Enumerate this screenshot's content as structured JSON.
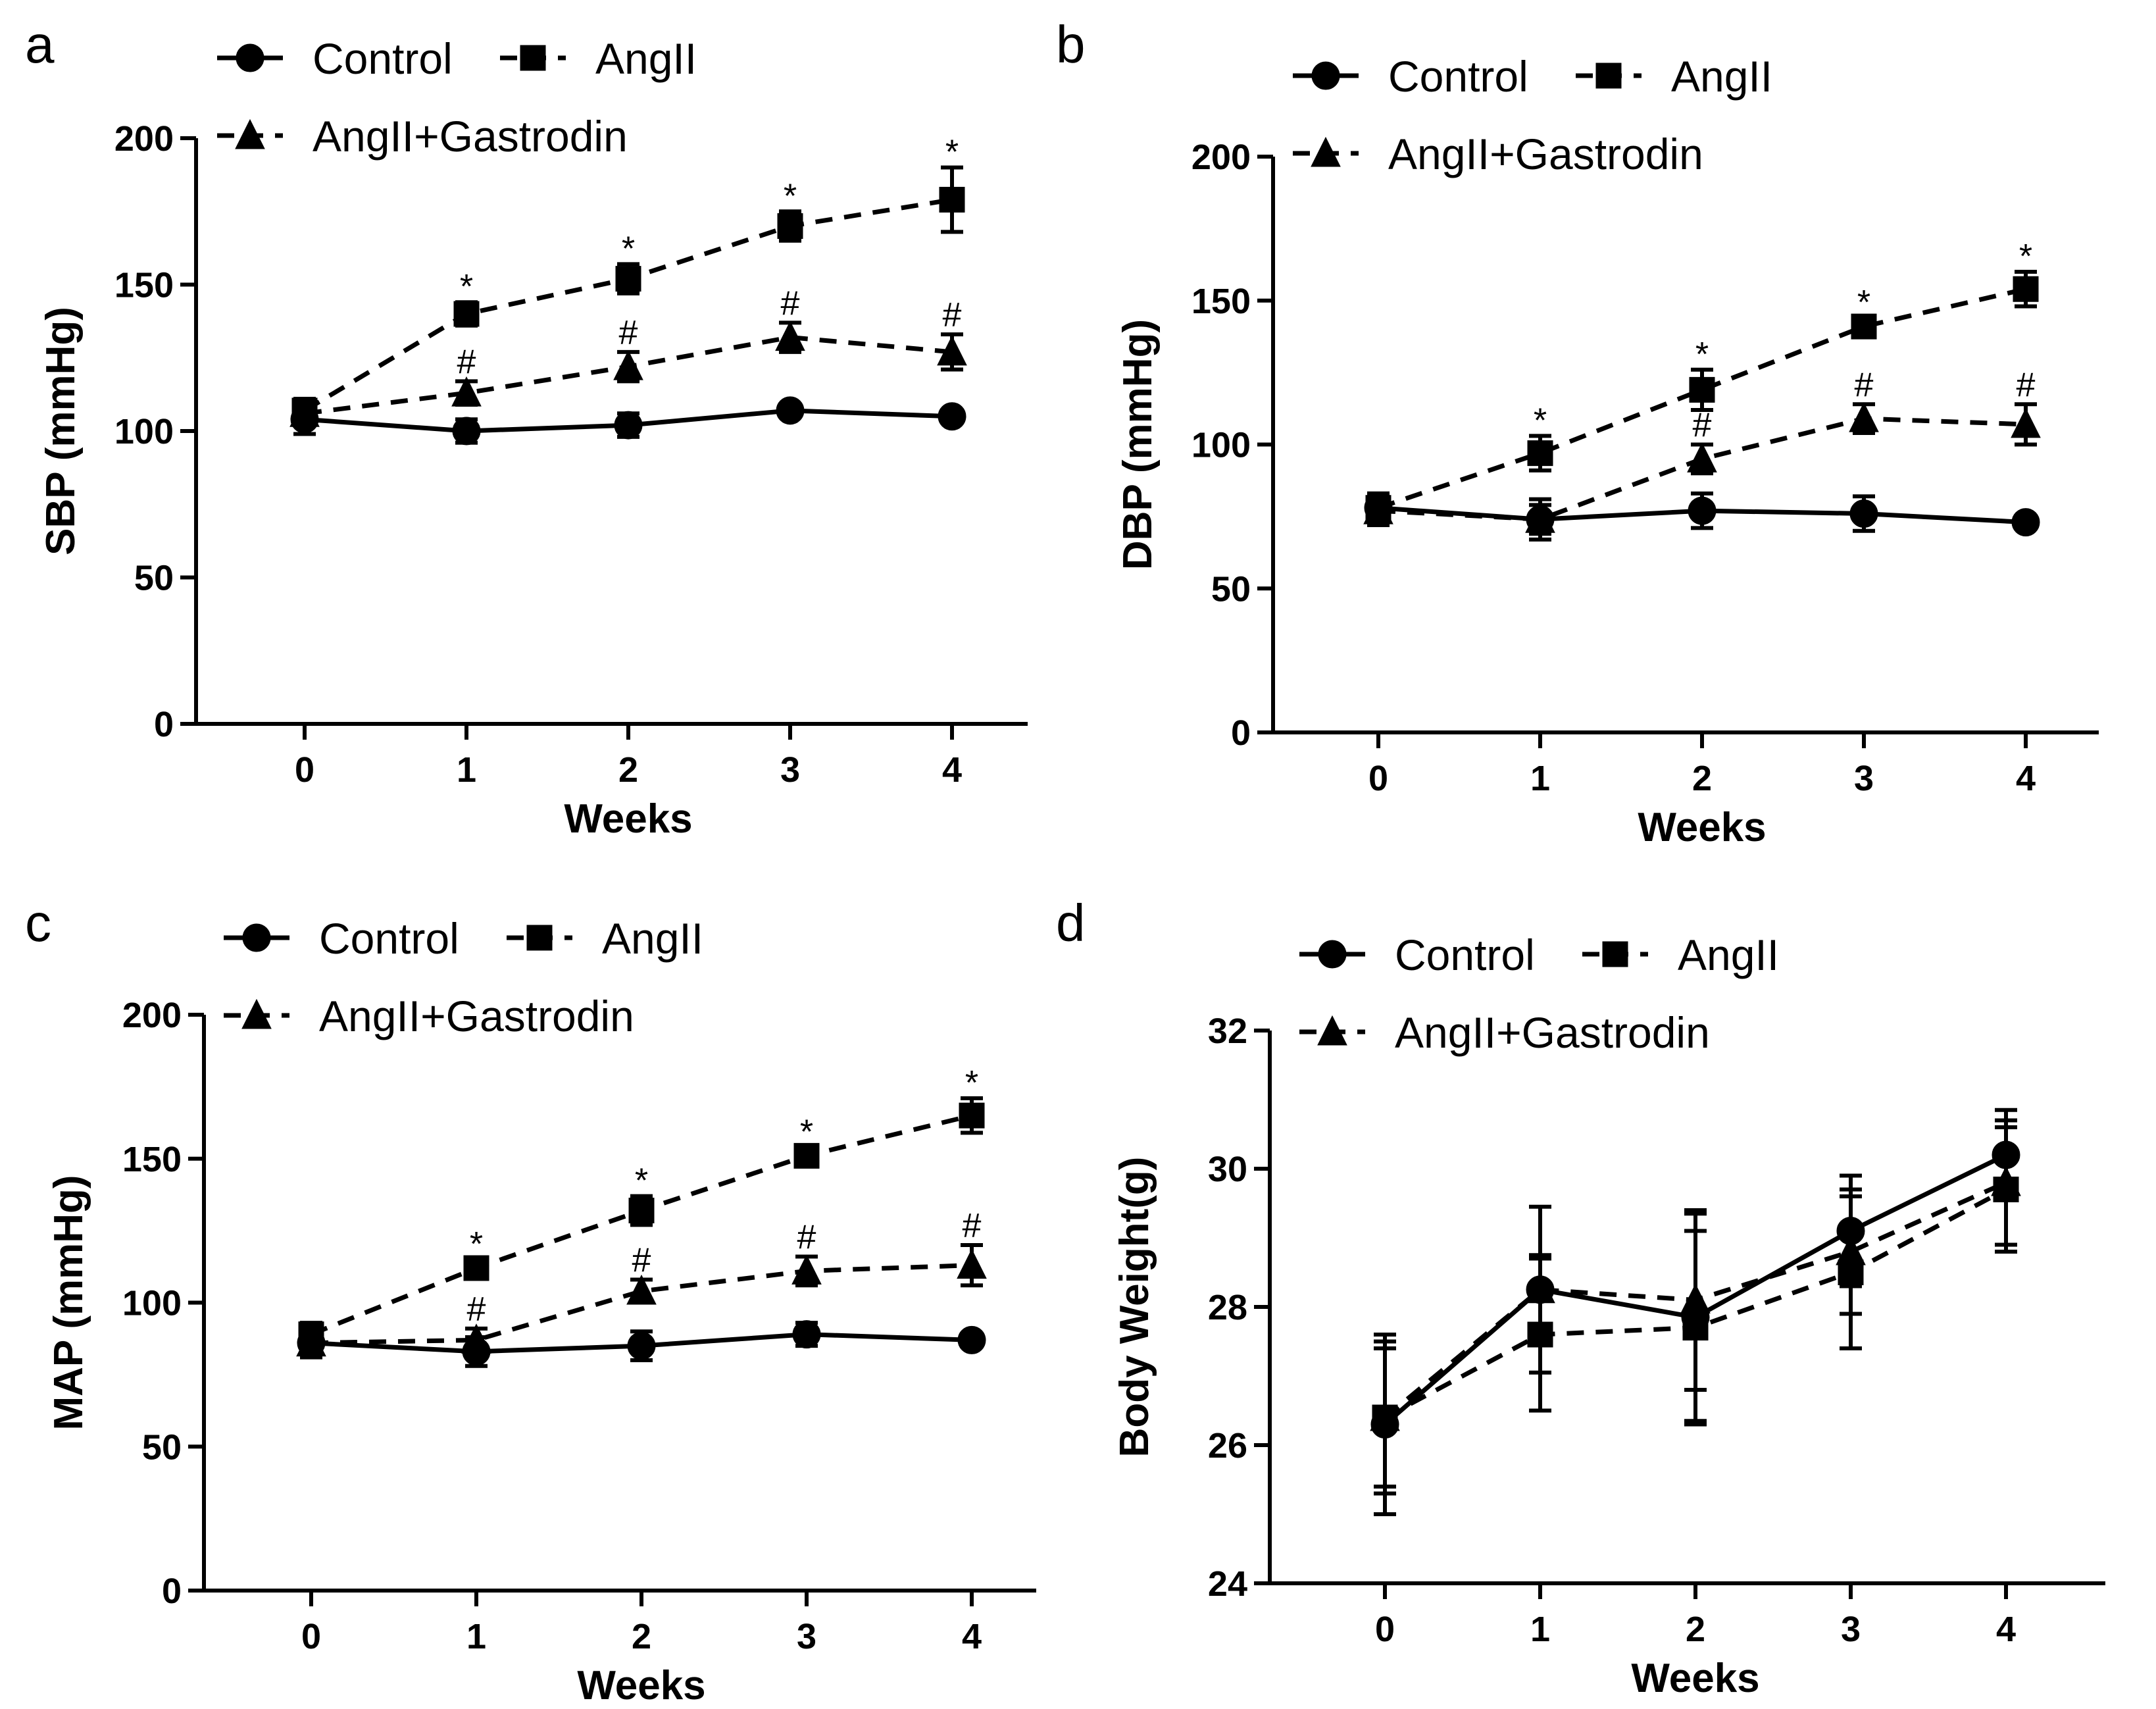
{
  "chart_data": [
    {
      "panel": "a",
      "type": "line",
      "xlabel": "Weeks",
      "ylabel": "SBP (mmHg)",
      "x": [
        0,
        1,
        2,
        3,
        4
      ],
      "ylim": [
        0,
        200
      ],
      "yticks": [
        0,
        50,
        100,
        150,
        200
      ],
      "grid": false,
      "legend_position": "top",
      "series": [
        {
          "name": "Control",
          "marker": "circle",
          "dashed": false,
          "values": [
            104,
            100,
            102,
            107,
            105
          ],
          "errors": [
            5,
            4,
            4,
            2,
            2
          ]
        },
        {
          "name": "AngII",
          "marker": "square",
          "dashed": true,
          "values": [
            107,
            140,
            152,
            170,
            179
          ],
          "errors": [
            4,
            4,
            5,
            5,
            11
          ]
        },
        {
          "name": "AngII+Gastrodin",
          "marker": "triangle",
          "dashed": true,
          "values": [
            106,
            113,
            122,
            132,
            127
          ],
          "errors": [
            4,
            4,
            5,
            5,
            6
          ]
        }
      ],
      "annotations": [
        {
          "series": "AngII",
          "x": 1,
          "text": "*"
        },
        {
          "series": "AngII",
          "x": 2,
          "text": "*"
        },
        {
          "series": "AngII",
          "x": 3,
          "text": "*"
        },
        {
          "series": "AngII",
          "x": 4,
          "text": "*"
        },
        {
          "series": "AngII+Gastrodin",
          "x": 1,
          "text": "#"
        },
        {
          "series": "AngII+Gastrodin",
          "x": 2,
          "text": "#"
        },
        {
          "series": "AngII+Gastrodin",
          "x": 3,
          "text": "#"
        },
        {
          "series": "AngII+Gastrodin",
          "x": 4,
          "text": "#"
        }
      ]
    },
    {
      "panel": "b",
      "type": "line",
      "xlabel": "Weeks",
      "ylabel": "DBP (mmHg)",
      "x": [
        0,
        1,
        2,
        3,
        4
      ],
      "ylim": [
        0,
        200
      ],
      "yticks": [
        0,
        50,
        100,
        150,
        200
      ],
      "grid": false,
      "legend_position": "top",
      "series": [
        {
          "name": "Control",
          "marker": "circle",
          "dashed": false,
          "values": [
            78,
            74,
            77,
            76,
            73
          ],
          "errors": [
            5,
            7,
            6,
            6,
            2
          ]
        },
        {
          "name": "AngII",
          "marker": "square",
          "dashed": true,
          "values": [
            78,
            97,
            119,
            141,
            154
          ],
          "errors": [
            5,
            6,
            7,
            3,
            6
          ]
        },
        {
          "name": "AngII+Gastrodin",
          "marker": "triangle",
          "dashed": true,
          "values": [
            77,
            74,
            95,
            109,
            107
          ],
          "errors": [
            5,
            5,
            5,
            5,
            7
          ]
        }
      ],
      "annotations": [
        {
          "series": "AngII",
          "x": 1,
          "text": "*"
        },
        {
          "series": "AngII",
          "x": 2,
          "text": "*"
        },
        {
          "series": "AngII",
          "x": 3,
          "text": "*"
        },
        {
          "series": "AngII",
          "x": 4,
          "text": "*"
        },
        {
          "series": "AngII+Gastrodin",
          "x": 2,
          "text": "#"
        },
        {
          "series": "AngII+Gastrodin",
          "x": 3,
          "text": "#"
        },
        {
          "series": "AngII+Gastrodin",
          "x": 4,
          "text": "#"
        }
      ]
    },
    {
      "panel": "c",
      "type": "line",
      "xlabel": "Weeks",
      "ylabel": "MAP (mmHg)",
      "x": [
        0,
        1,
        2,
        3,
        4
      ],
      "ylim": [
        0,
        200
      ],
      "yticks": [
        0,
        50,
        100,
        150,
        200
      ],
      "grid": false,
      "legend_position": "top",
      "series": [
        {
          "name": "Control",
          "marker": "circle",
          "dashed": false,
          "values": [
            86,
            83,
            85,
            89,
            87
          ],
          "errors": [
            5,
            5,
            5,
            4,
            2
          ]
        },
        {
          "name": "AngII",
          "marker": "square",
          "dashed": true,
          "values": [
            89,
            112,
            132,
            151,
            165
          ],
          "errors": [
            4,
            3,
            5,
            3,
            6
          ]
        },
        {
          "name": "AngII+Gastrodin",
          "marker": "triangle",
          "dashed": true,
          "values": [
            86,
            87,
            104,
            111,
            113
          ],
          "errors": [
            4,
            4,
            4,
            5,
            7
          ]
        }
      ],
      "annotations": [
        {
          "series": "AngII",
          "x": 1,
          "text": "*"
        },
        {
          "series": "AngII",
          "x": 2,
          "text": "*"
        },
        {
          "series": "AngII",
          "x": 3,
          "text": "*"
        },
        {
          "series": "AngII",
          "x": 4,
          "text": "*"
        },
        {
          "series": "AngII+Gastrodin",
          "x": 1,
          "text": "#"
        },
        {
          "series": "AngII+Gastrodin",
          "x": 2,
          "text": "#"
        },
        {
          "series": "AngII+Gastrodin",
          "x": 3,
          "text": "#"
        },
        {
          "series": "AngII+Gastrodin",
          "x": 4,
          "text": "#"
        }
      ]
    },
    {
      "panel": "d",
      "type": "line",
      "xlabel": "Weeks",
      "ylabel": "Body Weight(g)",
      "x": [
        0,
        1,
        2,
        3,
        4
      ],
      "ylim": [
        24,
        32
      ],
      "yticks": [
        24,
        26,
        28,
        30,
        32
      ],
      "grid": false,
      "legend_position": "top",
      "series": [
        {
          "name": "Control",
          "marker": "circle",
          "dashed": false,
          "values": [
            26.3,
            28.25,
            27.85,
            29.1,
            30.2
          ],
          "errors": [
            1.3,
            1.2,
            1.5,
            0.8,
            0.65
          ]
        },
        {
          "name": "AngII",
          "marker": "square",
          "dashed": true,
          "values": [
            26.4,
            27.6,
            27.7,
            28.5,
            29.7
          ],
          "errors": [
            1.1,
            1.1,
            1.4,
            1.1,
            0.9
          ]
        },
        {
          "name": "AngII+Gastrodin",
          "marker": "triangle",
          "dashed": true,
          "values": [
            26.4,
            28.25,
            28.1,
            28.8,
            29.8
          ],
          "errors": [
            1.0,
            0.5,
            1.3,
            0.9,
            0.9
          ]
        }
      ],
      "annotations": []
    }
  ]
}
